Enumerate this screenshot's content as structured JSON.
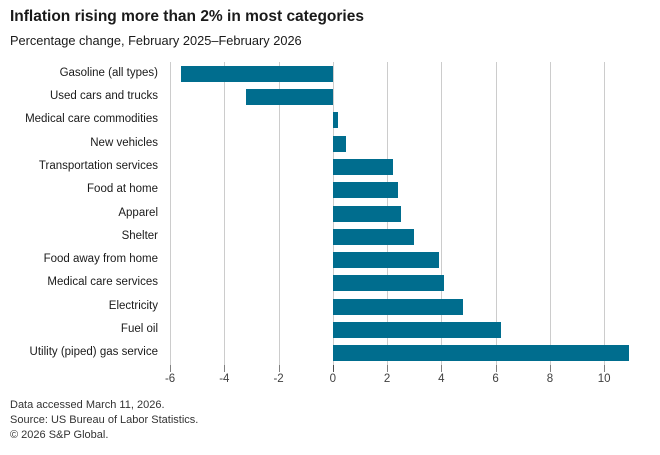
{
  "header": {
    "title": "Inflation rising more than 2% in most categories",
    "subtitle": "Percentage change, February 2025–February 2026"
  },
  "footer": {
    "lines": [
      "Data accessed March 11, 2026.",
      "Source: US Bureau of Labor Statistics.",
      "© 2026 S&P Global."
    ]
  },
  "chart_data": {
    "type": "bar",
    "orientation": "horizontal",
    "title": "Inflation rising more than 2% in most categories",
    "subtitle": "Percentage change, February 2025–February 2026",
    "categories": [
      "Gasoline (all types)",
      "Used cars and trucks",
      "Medical care commodities",
      "New vehicles",
      "Transportation services",
      "Food at home",
      "Apparel",
      "Shelter",
      "Food away from home",
      "Medical care services",
      "Electricity",
      "Fuel oil",
      "Utility (piped) gas service"
    ],
    "values": [
      -5.6,
      -3.2,
      0.2,
      0.5,
      2.2,
      2.4,
      2.5,
      3.0,
      3.9,
      4.1,
      4.8,
      6.2,
      10.9
    ],
    "xlabel": "",
    "ylabel": "",
    "xticks": [
      -6,
      -4,
      -2,
      0,
      2,
      4,
      6,
      8,
      10
    ],
    "xlim": [
      -6.15,
      11.1
    ],
    "grid": "vertical-only",
    "legend": "none",
    "bar_color": "#006d8e",
    "gridline_color": "#cccccc",
    "tick_color": "#808080",
    "zero_tick_color": "#4d4d4d",
    "tick_label_color": "#404040"
  }
}
